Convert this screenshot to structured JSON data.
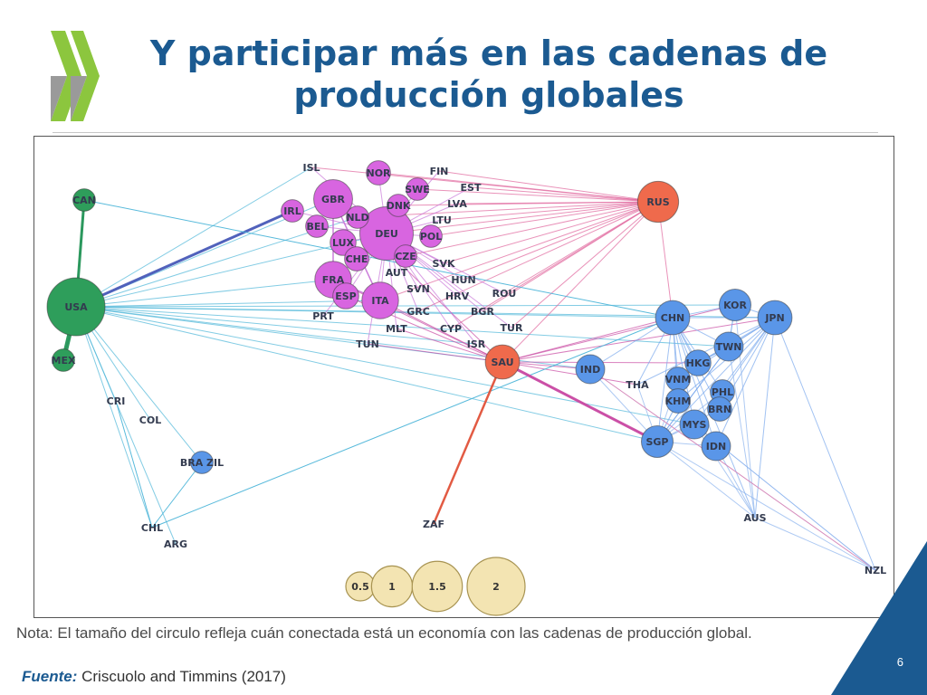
{
  "slide": {
    "title_line1": "Y participar más en las cadenas de",
    "title_line2": "producción globales",
    "note": "Nota: El tamaño del circulo refleja cuán conectada está un economía con las cadenas de producción global.",
    "source_label": "Fuente:",
    "source_text": " Criscuolo and Timmins (2017)",
    "page_number": "6"
  },
  "colors": {
    "title": "#1b5a91",
    "americas": "#2e9e5b",
    "europe": "#d865e0",
    "russia_saudi": "#ef6a4c",
    "asia": "#5a96e8",
    "legend": "#f3e4b2"
  },
  "network": {
    "nodes": [
      {
        "id": "USA",
        "group": "americas",
        "size": 2.0
      },
      {
        "id": "CAN",
        "group": "americas",
        "size": 0.3
      },
      {
        "id": "MEX",
        "group": "americas",
        "size": 0.3
      },
      {
        "id": "CRI",
        "group": "americas",
        "size": 0.0
      },
      {
        "id": "COL",
        "group": "americas",
        "size": 0.0
      },
      {
        "id": "BRA ZIL",
        "group": "asia",
        "size": 0.3
      },
      {
        "id": "CHL",
        "group": "americas",
        "size": 0.0
      },
      {
        "id": "ARG",
        "group": "americas",
        "size": 0.0
      },
      {
        "id": "DEU",
        "group": "europe",
        "size": 1.7
      },
      {
        "id": "GBR",
        "group": "europe",
        "size": 0.9
      },
      {
        "id": "FRA",
        "group": "europe",
        "size": 0.8
      },
      {
        "id": "ITA",
        "group": "europe",
        "size": 0.8
      },
      {
        "id": "NOR",
        "group": "europe",
        "size": 0.35
      },
      {
        "id": "ISL",
        "group": "europe",
        "size": 0.0
      },
      {
        "id": "FIN",
        "group": "europe",
        "size": 0.0
      },
      {
        "id": "EST",
        "group": "europe",
        "size": 0.0
      },
      {
        "id": "SWE",
        "group": "europe",
        "size": 0.3
      },
      {
        "id": "DNK",
        "group": "europe",
        "size": 0.3
      },
      {
        "id": "LVA",
        "group": "europe",
        "size": 0.0
      },
      {
        "id": "IRL",
        "group": "europe",
        "size": 0.3
      },
      {
        "id": "NLD",
        "group": "europe",
        "size": 0.3
      },
      {
        "id": "LTU",
        "group": "europe",
        "size": 0.0
      },
      {
        "id": "BEL",
        "group": "europe",
        "size": 0.3
      },
      {
        "id": "POL",
        "group": "europe",
        "size": 0.3
      },
      {
        "id": "LUX",
        "group": "europe",
        "size": 0.4
      },
      {
        "id": "CZE",
        "group": "europe",
        "size": 0.3
      },
      {
        "id": "CHE",
        "group": "europe",
        "size": 0.35
      },
      {
        "id": "AUT",
        "group": "europe",
        "size": 0.0
      },
      {
        "id": "SVK",
        "group": "europe",
        "size": 0.0
      },
      {
        "id": "HUN",
        "group": "europe",
        "size": 0.0
      },
      {
        "id": "ESP",
        "group": "europe",
        "size": 0.4
      },
      {
        "id": "SVN",
        "group": "europe",
        "size": 0.0
      },
      {
        "id": "HRV",
        "group": "europe",
        "size": 0.0
      },
      {
        "id": "ROU",
        "group": "europe",
        "size": 0.0
      },
      {
        "id": "PRT",
        "group": "europe",
        "size": 0.0
      },
      {
        "id": "GRC",
        "group": "europe",
        "size": 0.0
      },
      {
        "id": "BGR",
        "group": "europe",
        "size": 0.0
      },
      {
        "id": "MLT",
        "group": "europe",
        "size": 0.0
      },
      {
        "id": "CYP",
        "group": "europe",
        "size": 0.0
      },
      {
        "id": "TUR",
        "group": "europe",
        "size": 0.0
      },
      {
        "id": "TUN",
        "group": "europe",
        "size": 0.0
      },
      {
        "id": "ISR",
        "group": "europe",
        "size": 0.0
      },
      {
        "id": "RUS",
        "group": "russia_saudi",
        "size": 1.0
      },
      {
        "id": "SAU",
        "group": "russia_saudi",
        "size": 0.7
      },
      {
        "id": "ZAF",
        "group": "russia_saudi",
        "size": 0.0
      },
      {
        "id": "CHN",
        "group": "asia",
        "size": 0.7
      },
      {
        "id": "KOR",
        "group": "asia",
        "size": 0.6
      },
      {
        "id": "JPN",
        "group": "asia",
        "size": 0.7
      },
      {
        "id": "TWN",
        "group": "asia",
        "size": 0.5
      },
      {
        "id": "IND",
        "group": "asia",
        "size": 0.5
      },
      {
        "id": "HKG",
        "group": "asia",
        "size": 0.4
      },
      {
        "id": "THA",
        "group": "asia",
        "size": 0.0
      },
      {
        "id": "VNM",
        "group": "asia",
        "size": 0.35
      },
      {
        "id": "PHL",
        "group": "asia",
        "size": 0.35
      },
      {
        "id": "KHM",
        "group": "asia",
        "size": 0.35
      },
      {
        "id": "BRN",
        "group": "asia",
        "size": 0.35
      },
      {
        "id": "MYS",
        "group": "asia",
        "size": 0.5
      },
      {
        "id": "SGP",
        "group": "asia",
        "size": 0.6
      },
      {
        "id": "IDN",
        "group": "asia",
        "size": 0.5
      },
      {
        "id": "AUS",
        "group": "asia",
        "size": 0.0
      },
      {
        "id": "NZL",
        "group": "asia",
        "size": 0.0
      }
    ],
    "hubs": [
      {
        "from": "USA",
        "color": "#4fb6d9",
        "to": [
          "CAN",
          "MEX",
          "CRI",
          "COL",
          "CHL",
          "ARG",
          "BRA ZIL",
          "ISL",
          "IRL",
          "GBR",
          "DEU",
          "NLD",
          "FRA",
          "ITA",
          "CHN",
          "KOR",
          "JPN",
          "SAU",
          "SGP",
          "IND",
          "TWN",
          "ISR",
          "MYS"
        ]
      },
      {
        "from": "RUS",
        "color": "#e0649b",
        "to": [
          "ISL",
          "NOR",
          "FIN",
          "EST",
          "SWE",
          "DNK",
          "LVA",
          "LTU",
          "POL",
          "DEU",
          "NLD",
          "CZE",
          "SVK",
          "HUN",
          "ITA",
          "GRC",
          "BGR",
          "ROU",
          "TUR",
          "CYP",
          "CHN",
          "SAU"
        ]
      },
      {
        "from": "SAU",
        "color": "#c94aa3",
        "to": [
          "SGP",
          "KOR",
          "JPN",
          "CHN",
          "IND",
          "ITA",
          "FRA",
          "ESP",
          "MLT",
          "TUN",
          "GBR",
          "HKG",
          "THA",
          "ZAF"
        ]
      },
      {
        "from": "DEU",
        "color": "#c978d9",
        "to": [
          "GBR",
          "FRA",
          "ITA",
          "NOR",
          "SWE",
          "DNK",
          "FIN",
          "EST",
          "LVA",
          "LTU",
          "POL",
          "NLD",
          "BEL",
          "LUX",
          "CHE",
          "AUT",
          "CZE",
          "SVK",
          "HUN",
          "ESP",
          "SVN",
          "HRV",
          "ROU",
          "PRT",
          "GRC",
          "BGR",
          "MLT",
          "CYP",
          "TUR",
          "TUN",
          "ISR",
          "IRL",
          "ISL"
        ]
      },
      {
        "from": "CHN",
        "color": "#79a8ec",
        "to": [
          "KOR",
          "JPN",
          "TWN",
          "HKG",
          "VNM",
          "KHM",
          "THA",
          "MYS",
          "SGP",
          "IDN",
          "PHL",
          "BRN",
          "AUS",
          "IND"
        ]
      },
      {
        "from": "JPN",
        "color": "#79a8ec",
        "to": [
          "KOR",
          "TWN",
          "HKG",
          "VNM",
          "PHL",
          "BRN",
          "MYS",
          "SGP",
          "IDN",
          "AUS",
          "NZL",
          "THA",
          "KHM"
        ]
      },
      {
        "from": "SGP",
        "color": "#8bb3ee",
        "to": [
          "IDN",
          "MYS",
          "THA",
          "VNM",
          "PHL",
          "BRN",
          "KHM",
          "HKG",
          "IND",
          "AUS",
          "NZL",
          "TWN"
        ]
      },
      {
        "from": "AUS",
        "color": "#8bb3ee",
        "to": [
          "NZL",
          "KOR",
          "TWN",
          "MYS",
          "IDN"
        ]
      }
    ],
    "extra_edges": [
      {
        "a": "USA",
        "b": "CAN",
        "color": "#239455",
        "weight": 3
      },
      {
        "a": "USA",
        "b": "MEX",
        "color": "#239455",
        "weight": 5
      },
      {
        "a": "USA",
        "b": "IRL",
        "color": "#4b5bb8",
        "weight": 3
      },
      {
        "a": "CAN",
        "b": "CHN",
        "color": "#4fb6d9",
        "weight": 1
      },
      {
        "a": "CHL",
        "b": "BRA ZIL",
        "color": "#4fb6d9",
        "weight": 1
      },
      {
        "a": "CHL",
        "b": "CHN",
        "color": "#4fb6d9",
        "weight": 1
      },
      {
        "a": "CRI",
        "b": "CHL",
        "color": "#4fb6d9",
        "weight": 1
      },
      {
        "a": "GBR",
        "b": "FRA",
        "color": "#c978d9",
        "weight": 1.5
      },
      {
        "a": "GBR",
        "b": "ITA",
        "color": "#c978d9",
        "weight": 1.5
      },
      {
        "a": "FRA",
        "b": "ITA",
        "color": "#c978d9",
        "weight": 1.5
      },
      {
        "a": "SAU",
        "b": "ZAF",
        "color": "#e2553b",
        "weight": 2.5
      },
      {
        "a": "SAU",
        "b": "SGP",
        "color": "#c94aa3",
        "weight": 3
      },
      {
        "a": "KOR",
        "b": "TWN",
        "color": "#79a8ec",
        "weight": 1
      },
      {
        "a": "IND",
        "b": "NZL",
        "color": "#d486b8",
        "weight": 1
      },
      {
        "a": "MYS",
        "b": "NZL",
        "color": "#8bb3ee",
        "weight": 1
      },
      {
        "a": "TWN",
        "b": "SGP",
        "color": "#79a8ec",
        "weight": 1
      },
      {
        "a": "HKG",
        "b": "TWN",
        "color": "#79a8ec",
        "weight": 1
      }
    ]
  },
  "legend": {
    "items": [
      {
        "value": 0.5,
        "label": "0.5"
      },
      {
        "value": 1,
        "label": "1"
      },
      {
        "value": 1.5,
        "label": "1.5"
      },
      {
        "value": 2,
        "label": "2"
      }
    ]
  }
}
